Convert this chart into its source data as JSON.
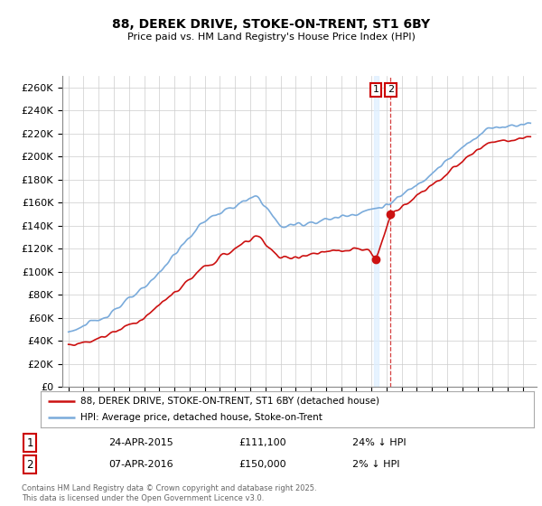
{
  "title": "88, DEREK DRIVE, STOKE-ON-TRENT, ST1 6BY",
  "subtitle": "Price paid vs. HM Land Registry's House Price Index (HPI)",
  "ylim": [
    0,
    270000
  ],
  "yticks": [
    0,
    20000,
    40000,
    60000,
    80000,
    100000,
    120000,
    140000,
    160000,
    180000,
    200000,
    220000,
    240000,
    260000
  ],
  "ytick_labels": [
    "£0",
    "£20K",
    "£40K",
    "£60K",
    "£80K",
    "£100K",
    "£120K",
    "£140K",
    "£160K",
    "£180K",
    "£200K",
    "£220K",
    "£240K",
    "£260K"
  ],
  "hpi_color": "#7aabdb",
  "price_color": "#cc1111",
  "vline1_color": "#aaccee",
  "vline2_color": "#cc1111",
  "annotation_box_color": "#cc0000",
  "marker1_date_x": 2015.3,
  "marker2_date_x": 2016.27,
  "marker1_y": 111100,
  "marker2_y": 150000,
  "transaction1": {
    "label": "1",
    "date": "24-APR-2015",
    "price": "£111,100",
    "hpi_diff": "24% ↓ HPI"
  },
  "transaction2": {
    "label": "2",
    "date": "07-APR-2016",
    "price": "£150,000",
    "hpi_diff": "2% ↓ HPI"
  },
  "legend_line1": "88, DEREK DRIVE, STOKE-ON-TRENT, ST1 6BY (detached house)",
  "legend_line2": "HPI: Average price, detached house, Stoke-on-Trent",
  "footer": "Contains HM Land Registry data © Crown copyright and database right 2025.\nThis data is licensed under the Open Government Licence v3.0.",
  "background_color": "#ffffff",
  "plot_bg_color": "#ffffff",
  "grid_color": "#cccccc",
  "xlim_left": 1994.6,
  "xlim_right": 2025.9
}
